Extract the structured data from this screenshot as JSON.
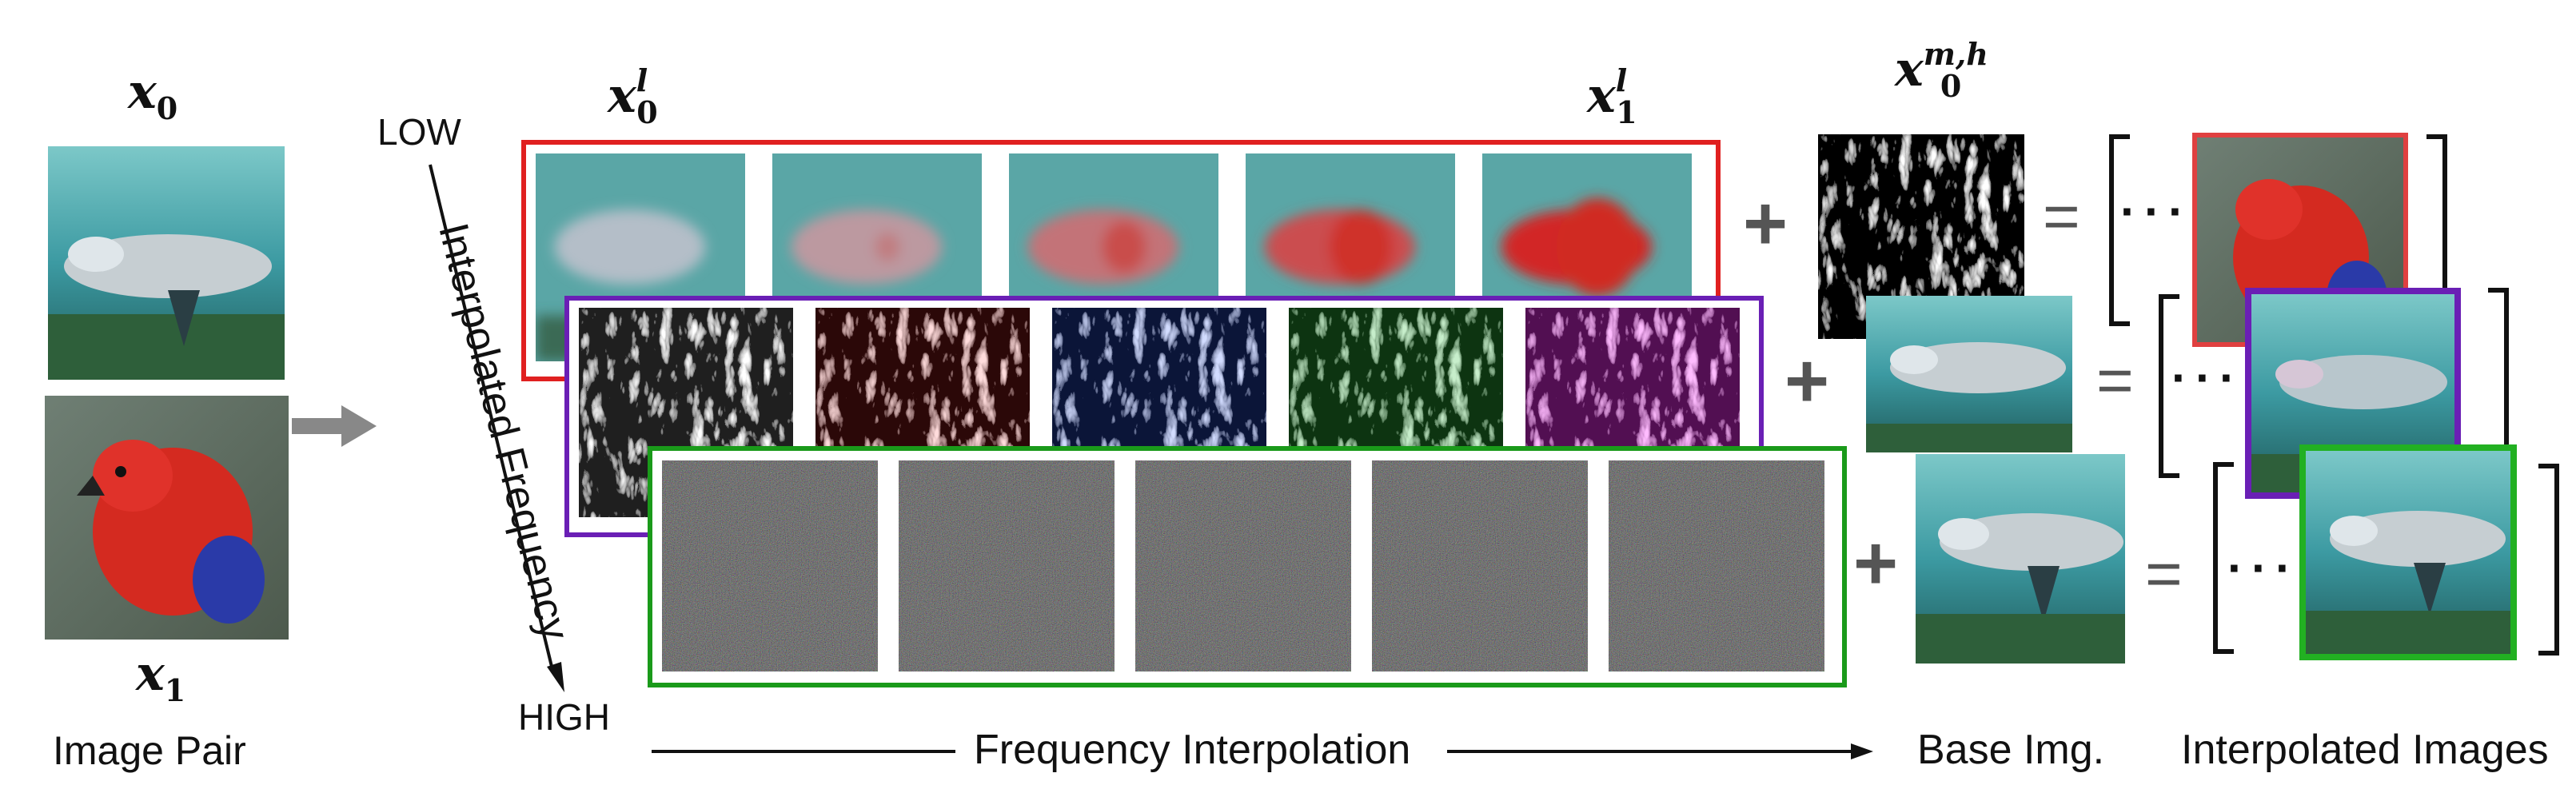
{
  "labels": {
    "x0": "x",
    "x0_sub": "0",
    "x1": "x",
    "x1_sub": "1",
    "image_pair": "Image Pair",
    "low": "LOW",
    "high": "HIGH",
    "interpolated_frequency": "Interpolated Frequency",
    "x0l": "x",
    "x0l_sub": "0",
    "x0l_sup": "l",
    "x1l": "x",
    "x1l_sub": "1",
    "x1l_sup": "l",
    "x0mh": "x",
    "x0mh_sub": "0",
    "x0mh_sup": "m,h",
    "frequency_interpolation": "Frequency Interpolation",
    "base_img": "Base Img.",
    "interpolated_images": "Interpolated Images",
    "plus": "+",
    "equals": "=",
    "ellipsis": "···"
  },
  "colors": {
    "low_band": "#e02020",
    "mid_band": "#6a1fb5",
    "high_band": "#1a9a1a",
    "arrow_gray": "#888888",
    "ocean": "#3a9aa0",
    "parrot_red": "#d42a20"
  },
  "rows": [
    {
      "band": "low",
      "tiles": [
        "dolphin-blurred",
        "blend-blurred",
        "blend-blurred",
        "parrot-blurred",
        "parrot-blurred"
      ]
    },
    {
      "band": "mid",
      "tiles": [
        "edge-map",
        "edge-map",
        "edge-map",
        "edge-map",
        "edge-map"
      ]
    },
    {
      "band": "high",
      "tiles": [
        "noise",
        "noise",
        "noise",
        "noise",
        "noise"
      ]
    }
  ]
}
